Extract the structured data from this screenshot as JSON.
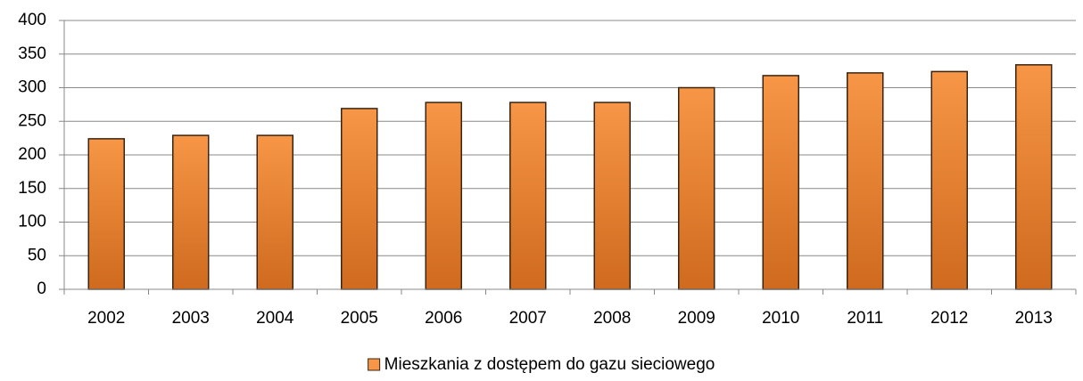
{
  "chart_data": {
    "type": "bar",
    "categories": [
      "2002",
      "2003",
      "2004",
      "2005",
      "2006",
      "2007",
      "2008",
      "2009",
      "2010",
      "2011",
      "2012",
      "2013"
    ],
    "series": [
      {
        "name": "Mieszkania z dostępem do gazu sieciowego",
        "color": "#f79646",
        "values": [
          224,
          229,
          229,
          269,
          278,
          278,
          278,
          300,
          318,
          322,
          324,
          334
        ]
      }
    ],
    "ylim": [
      0,
      400
    ],
    "yticks": [
      0,
      50,
      100,
      150,
      200,
      250,
      300,
      350,
      400
    ],
    "grid": true,
    "legend": "bottom"
  }
}
